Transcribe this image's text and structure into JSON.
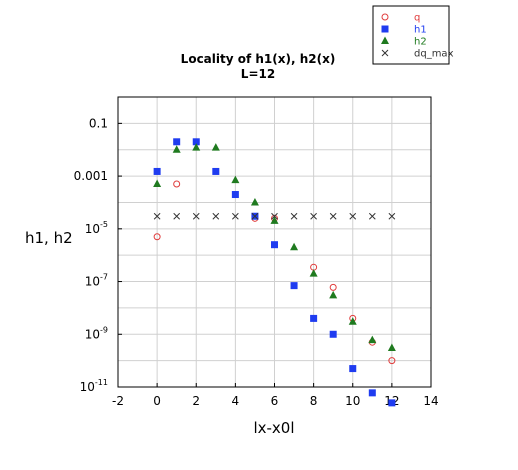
{
  "chart_data": {
    "type": "scatter",
    "title": "Locality of h1(x), h2(x)",
    "subtitle": "L=12",
    "xlabel": "lx-x0l",
    "ylabel": "h1, h2",
    "xlim": [
      -2,
      14
    ],
    "xticks": [
      -2,
      0,
      2,
      4,
      6,
      8,
      10,
      12,
      14
    ],
    "ylim_log10": [
      -11,
      0
    ],
    "y_scale": "log",
    "yticks": [
      {
        "base": "0.1",
        "exp": ""
      },
      {
        "base": "0.001",
        "exp": ""
      },
      {
        "base": "10",
        "exp": "-5"
      },
      {
        "base": "10",
        "exp": "-7"
      },
      {
        "base": "10",
        "exp": "-9"
      },
      {
        "base": "10",
        "exp": "-11"
      }
    ],
    "grid": true,
    "legend_position": "top-right",
    "series": [
      {
        "name": "q",
        "marker": "open-circle",
        "color": "#e03c3c",
        "x": [
          0,
          1,
          5,
          6,
          8,
          9,
          10,
          11,
          12
        ],
        "y": [
          5e-06,
          0.0005,
          2.5e-05,
          2.5e-05,
          3.5e-07,
          6e-08,
          4e-09,
          5e-10,
          1e-10
        ]
      },
      {
        "name": "h1",
        "marker": "square",
        "color": "#1f3cf0",
        "x": [
          0,
          1,
          2,
          3,
          4,
          5,
          6,
          7,
          8,
          9,
          10,
          11,
          12
        ],
        "y": [
          0.0015,
          0.02,
          0.02,
          0.0015,
          0.0002,
          3e-05,
          2.5e-06,
          7e-08,
          4e-09,
          1e-09,
          5e-11,
          6e-12,
          2.5e-12
        ]
      },
      {
        "name": "h2",
        "marker": "triangle",
        "color": "#1f7a1f",
        "x": [
          0,
          1,
          2,
          3,
          4,
          5,
          6,
          7,
          8,
          9,
          10,
          11,
          12
        ],
        "y": [
          0.0005,
          0.01,
          0.012,
          0.012,
          0.0007,
          0.0001,
          2e-05,
          2e-06,
          2e-07,
          3e-08,
          3e-09,
          6e-10,
          3e-10
        ]
      },
      {
        "name": "dq_max",
        "marker": "x",
        "color": "#333333",
        "x": [
          0,
          1,
          2,
          3,
          4,
          5,
          6,
          7,
          8,
          9,
          10,
          11,
          12
        ],
        "y": [
          3e-05,
          3e-05,
          3e-05,
          3e-05,
          3e-05,
          3e-05,
          3e-05,
          3e-05,
          3e-05,
          3e-05,
          3e-05,
          3e-05,
          3e-05
        ]
      }
    ]
  }
}
